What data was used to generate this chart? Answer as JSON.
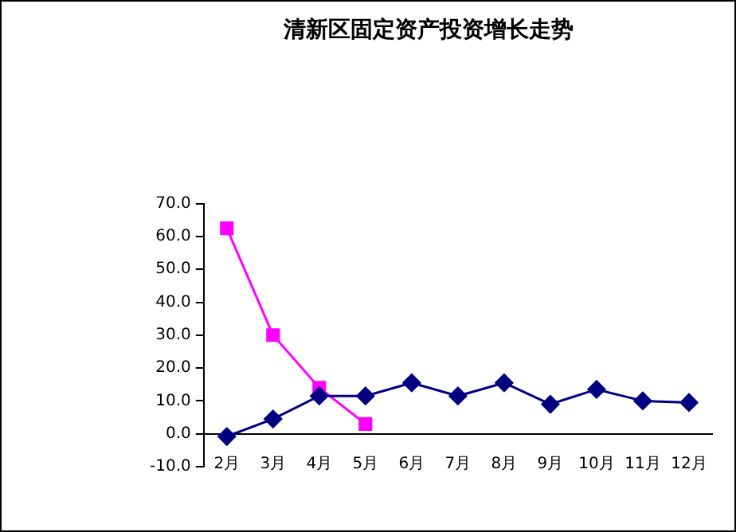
{
  "chart_data": {
    "type": "line",
    "title": "清新区固定资产投资增长走势",
    "categories": [
      "2月",
      "3月",
      "4月",
      "5月",
      "6月",
      "7月",
      "8月",
      "9月",
      "10月",
      "11月",
      "12月"
    ],
    "series": [
      {
        "color": "#000080",
        "values": [
          -0.8,
          4.5,
          11.5,
          11.5,
          15.5,
          11.5,
          15.5,
          9,
          13.5,
          10,
          9.5
        ],
        "marker": "diamond"
      },
      {
        "color": "#ff00ff",
        "values": [
          62.5,
          30,
          14,
          3,
          null,
          null,
          null,
          null,
          null,
          null,
          null
        ],
        "marker": "square"
      }
    ],
    "ylim": [
      -10,
      70
    ],
    "yticks": [
      {
        "value": -10,
        "label": "-10.0"
      },
      {
        "value": 0,
        "label": "0.0"
      },
      {
        "value": 10,
        "label": "10.0"
      },
      {
        "value": 20,
        "label": "20.0"
      },
      {
        "value": 30,
        "label": "30.0"
      },
      {
        "value": 40,
        "label": "40.0"
      },
      {
        "value": 50,
        "label": "50.0"
      },
      {
        "value": 60,
        "label": "60.0"
      },
      {
        "value": 70,
        "label": "70.0"
      }
    ],
    "grid": false,
    "legend": false,
    "line_style": "solid"
  }
}
